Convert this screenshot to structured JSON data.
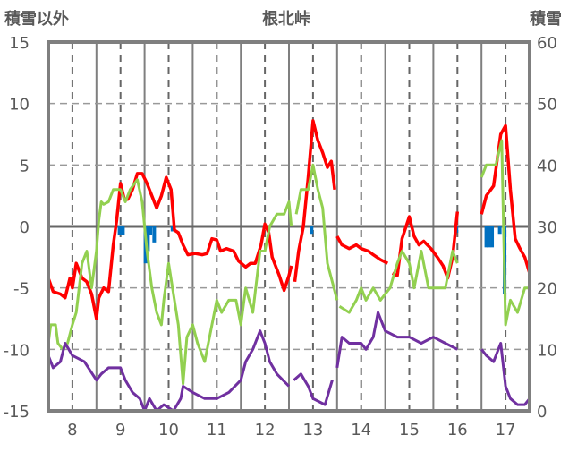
{
  "chart_data": {
    "type": "line",
    "title": "根北峠",
    "ylabel_left": "積雪以外",
    "ylabel_right": "積雪",
    "ylim_left": [
      -15,
      15
    ],
    "ylim_right": [
      0,
      60
    ],
    "xlim": [
      7.5,
      17.5
    ],
    "yticks_left": [
      "15",
      "10",
      "5",
      "0",
      "-5",
      "-10",
      "-15"
    ],
    "yticks_left_values": [
      15,
      10,
      5,
      0,
      -5,
      -10,
      -15
    ],
    "yticks_right": [
      "60",
      "50",
      "40",
      "30",
      "20",
      "10",
      "0"
    ],
    "categories": [
      "8",
      "9",
      "10",
      "11",
      "12",
      "13",
      "14",
      "15",
      "16",
      "17"
    ],
    "category_values": [
      8,
      9,
      10,
      11,
      12,
      13,
      14,
      15,
      16,
      17
    ],
    "grid": true,
    "series": [
      {
        "name": "red-series",
        "color": "#ff0000",
        "segments": [
          [
            [
              7.5,
              -4.2
            ],
            [
              7.6,
              -5.3
            ],
            [
              7.75,
              -5.5
            ],
            [
              7.85,
              -5.8
            ],
            [
              7.95,
              -4.2
            ],
            [
              8.0,
              -5
            ],
            [
              8.08,
              -3
            ],
            [
              8.2,
              -4.2
            ],
            [
              8.3,
              -4.5
            ],
            [
              8.4,
              -5.5
            ],
            [
              8.5,
              -7.5
            ],
            [
              8.55,
              -5.8
            ],
            [
              8.65,
              -5
            ],
            [
              8.75,
              -5.3
            ],
            [
              8.85,
              -1.5
            ],
            [
              8.92,
              0.5
            ],
            [
              9.0,
              3.5
            ],
            [
              9.08,
              2.2
            ],
            [
              9.15,
              2.2
            ],
            [
              9.25,
              3
            ],
            [
              9.35,
              4.3
            ],
            [
              9.45,
              4.3
            ],
            [
              9.55,
              3.5
            ],
            [
              9.65,
              2.5
            ],
            [
              9.75,
              1.5
            ],
            [
              9.85,
              2.5
            ],
            [
              9.95,
              4
            ],
            [
              10.05,
              3
            ],
            [
              10.12,
              -0.3
            ],
            [
              10.2,
              -0.5
            ],
            [
              10.3,
              -1.5
            ],
            [
              10.4,
              -2.3
            ],
            [
              10.55,
              -2.2
            ],
            [
              10.7,
              -2.3
            ],
            [
              10.8,
              -2.2
            ],
            [
              10.9,
              -1
            ],
            [
              11.0,
              -1.1
            ],
            [
              11.08,
              -2
            ],
            [
              11.2,
              -1.8
            ],
            [
              11.35,
              -2
            ],
            [
              11.45,
              -2.8
            ],
            [
              11.6,
              -3.3
            ],
            [
              11.7,
              -3
            ],
            [
              11.8,
              -3
            ],
            [
              11.92,
              -1.5
            ],
            [
              12.0,
              0.2
            ],
            [
              12.08,
              -0.5
            ],
            [
              12.15,
              -2.5
            ],
            [
              12.3,
              -4
            ],
            [
              12.4,
              -5.2
            ],
            [
              12.5,
              -4
            ],
            [
              12.55,
              -3.2
            ]
          ],
          [
            [
              12.62,
              -4.5
            ],
            [
              12.7,
              -2
            ],
            [
              12.8,
              0
            ],
            [
              12.9,
              4
            ],
            [
              13.0,
              8.6
            ],
            [
              13.1,
              7
            ],
            [
              13.2,
              6
            ],
            [
              13.3,
              4.8
            ],
            [
              13.38,
              5.3
            ],
            [
              13.45,
              3
            ]
          ],
          [
            [
              13.5,
              -0.8
            ],
            [
              13.6,
              -1.5
            ],
            [
              13.75,
              -1.8
            ],
            [
              13.9,
              -1.5
            ],
            [
              14.0,
              -1.8
            ],
            [
              14.15,
              -2
            ],
            [
              14.25,
              -2.3
            ],
            [
              14.4,
              -2.7
            ],
            [
              14.55,
              -3
            ]
          ],
          [
            [
              14.65,
              -3.8
            ],
            [
              14.75,
              -4
            ],
            [
              14.85,
              -1
            ],
            [
              14.95,
              0.2
            ],
            [
              15.0,
              0.8
            ],
            [
              15.1,
              -0.8
            ],
            [
              15.2,
              -1.5
            ],
            [
              15.3,
              -1.2
            ],
            [
              15.45,
              -1.8
            ],
            [
              15.6,
              -2.6
            ],
            [
              15.7,
              -3.2
            ],
            [
              15.8,
              -4.2
            ],
            [
              15.9,
              -2.5
            ],
            [
              16.0,
              1.2
            ]
          ],
          [
            [
              16.5,
              1
            ],
            [
              16.6,
              2.5
            ],
            [
              16.75,
              3.3
            ],
            [
              16.9,
              7.5
            ],
            [
              17.0,
              8.2
            ],
            [
              17.1,
              3
            ],
            [
              17.2,
              -1
            ],
            [
              17.3,
              -1.8
            ],
            [
              17.4,
              -2.5
            ],
            [
              17.5,
              -3.8
            ]
          ]
        ]
      },
      {
        "name": "green-series",
        "color": "#92d050",
        "segments": [
          [
            [
              7.5,
              -9.5
            ],
            [
              7.55,
              -8
            ],
            [
              7.65,
              -8
            ],
            [
              7.7,
              -9.5
            ],
            [
              7.8,
              -10
            ],
            [
              7.9,
              -9.5
            ],
            [
              8.0,
              -8
            ],
            [
              8.08,
              -7
            ],
            [
              8.2,
              -3
            ],
            [
              8.3,
              -2
            ],
            [
              8.4,
              -5
            ],
            [
              8.5,
              -2
            ],
            [
              8.55,
              0.5
            ],
            [
              8.6,
              2
            ],
            [
              8.65,
              1.8
            ],
            [
              8.75,
              2
            ],
            [
              8.85,
              3
            ],
            [
              9.0,
              3
            ],
            [
              9.1,
              2
            ],
            [
              9.2,
              3
            ],
            [
              9.35,
              3.8
            ],
            [
              9.45,
              2
            ],
            [
              9.55,
              -2
            ],
            [
              9.65,
              -5
            ],
            [
              9.75,
              -7
            ],
            [
              9.85,
              -8
            ],
            [
              9.9,
              -6
            ],
            [
              10.0,
              -3
            ],
            [
              10.08,
              -5
            ],
            [
              10.2,
              -8
            ],
            [
              10.3,
              -12.8
            ],
            [
              10.38,
              -9
            ],
            [
              10.5,
              -8
            ],
            [
              10.6,
              -9.5
            ],
            [
              10.75,
              -11
            ],
            [
              10.9,
              -8
            ],
            [
              11.0,
              -6
            ],
            [
              11.1,
              -7
            ],
            [
              11.25,
              -6
            ],
            [
              11.4,
              -6
            ],
            [
              11.5,
              -8
            ],
            [
              11.6,
              -5
            ],
            [
              11.75,
              -7
            ],
            [
              11.9,
              -2
            ],
            [
              12.0,
              -2
            ],
            [
              12.1,
              0
            ],
            [
              12.25,
              1
            ],
            [
              12.4,
              1
            ],
            [
              12.5,
              2
            ],
            [
              12.55,
              0
            ]
          ],
          [
            [
              12.65,
              1
            ],
            [
              12.75,
              3
            ],
            [
              12.9,
              3
            ],
            [
              13.0,
              5
            ],
            [
              13.1,
              3
            ],
            [
              13.2,
              1.5
            ],
            [
              13.3,
              -3
            ],
            [
              13.4,
              -4.5
            ],
            [
              13.5,
              -6
            ]
          ],
          [
            [
              13.55,
              -6.5
            ],
            [
              13.75,
              -7
            ],
            [
              13.9,
              -6
            ],
            [
              14.0,
              -5
            ],
            [
              14.1,
              -6
            ],
            [
              14.25,
              -5
            ],
            [
              14.4,
              -6
            ],
            [
              14.6,
              -5
            ],
            [
              14.75,
              -3
            ],
            [
              14.85,
              -2
            ],
            [
              15.0,
              -3
            ],
            [
              15.1,
              -5
            ],
            [
              15.25,
              -2
            ],
            [
              15.4,
              -5
            ],
            [
              15.75,
              -5
            ],
            [
              15.9,
              -2
            ],
            [
              16.0,
              -3
            ]
          ],
          [
            [
              16.5,
              4
            ],
            [
              16.6,
              5
            ],
            [
              16.8,
              5
            ],
            [
              16.92,
              7
            ],
            [
              17.0,
              -8
            ],
            [
              17.1,
              -6
            ],
            [
              17.25,
              -7
            ],
            [
              17.4,
              -5
            ],
            [
              17.5,
              -5
            ]
          ]
        ]
      },
      {
        "name": "purple-series",
        "color": "#7030a0",
        "segments": [
          [
            [
              7.5,
              -10.5
            ],
            [
              7.6,
              -11.5
            ],
            [
              7.75,
              -11
            ],
            [
              7.85,
              -9.5
            ],
            [
              8.0,
              -10.5
            ],
            [
              8.25,
              -11
            ],
            [
              8.5,
              -12.5
            ],
            [
              8.6,
              -12
            ],
            [
              8.75,
              -11.5
            ],
            [
              9.0,
              -11.5
            ],
            [
              9.1,
              -12.5
            ],
            [
              9.25,
              -13.5
            ],
            [
              9.4,
              -14
            ],
            [
              9.5,
              -15
            ],
            [
              9.6,
              -14
            ],
            [
              9.75,
              -15
            ],
            [
              9.9,
              -14.5
            ],
            [
              10.1,
              -15
            ],
            [
              10.25,
              -14
            ],
            [
              10.3,
              -13
            ],
            [
              10.5,
              -13.5
            ],
            [
              10.75,
              -14
            ],
            [
              11.0,
              -14
            ],
            [
              11.25,
              -13.5
            ],
            [
              11.5,
              -12.5
            ],
            [
              11.6,
              -11
            ],
            [
              11.75,
              -10
            ],
            [
              11.9,
              -8.5
            ],
            [
              12.0,
              -9.5
            ],
            [
              12.1,
              -11
            ],
            [
              12.25,
              -12
            ],
            [
              12.5,
              -13
            ]
          ],
          [
            [
              12.6,
              -12.5
            ],
            [
              12.75,
              -12
            ],
            [
              12.9,
              -13
            ],
            [
              13.0,
              -14
            ],
            [
              13.25,
              -14.5
            ],
            [
              13.4,
              -12.5
            ]
          ],
          [
            [
              13.5,
              -11.5
            ],
            [
              13.6,
              -9
            ],
            [
              13.75,
              -9.5
            ],
            [
              14.0,
              -9.5
            ],
            [
              14.1,
              -10
            ],
            [
              14.25,
              -9
            ],
            [
              14.35,
              -7
            ],
            [
              14.5,
              -8.5
            ],
            [
              14.75,
              -9
            ],
            [
              15.0,
              -9
            ],
            [
              15.25,
              -9.5
            ],
            [
              15.5,
              -9
            ],
            [
              15.75,
              -9.5
            ],
            [
              16.0,
              -10
            ]
          ],
          [
            [
              16.5,
              -10
            ],
            [
              16.6,
              -10.5
            ],
            [
              16.75,
              -11
            ],
            [
              16.9,
              -9.5
            ],
            [
              17.0,
              -13
            ],
            [
              17.1,
              -14
            ],
            [
              17.25,
              -14.5
            ],
            [
              17.4,
              -14.5
            ],
            [
              17.5,
              -14
            ]
          ]
        ]
      }
    ],
    "bars": {
      "name": "blue-bars",
      "color": "#0070c0",
      "points": [
        [
          8.98,
          -0.7
        ],
        [
          9.05,
          -0.7
        ],
        [
          9.52,
          -3
        ],
        [
          9.57,
          -2
        ],
        [
          9.62,
          -0.7
        ],
        [
          9.7,
          -1.3
        ],
        [
          10.08,
          -0.4
        ],
        [
          12.97,
          -0.6
        ],
        [
          16.6,
          -1.7
        ],
        [
          16.65,
          -1.7
        ],
        [
          16.72,
          -1.7
        ],
        [
          16.88,
          -0.6
        ],
        [
          16.98,
          -5.5
        ],
        [
          15.98,
          -0.5
        ]
      ]
    }
  }
}
